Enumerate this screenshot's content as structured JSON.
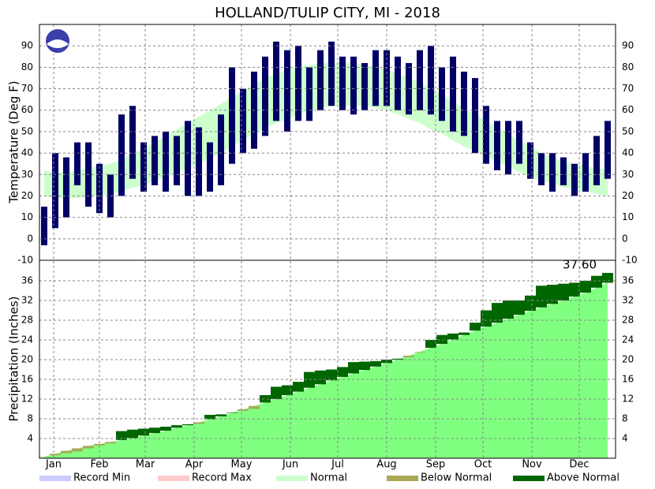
{
  "chart_data": [
    {
      "type": "temperature-range",
      "title": "HOLLAND/TULIP CITY, MI - 2018",
      "y_label": "Temperature (Deg F)",
      "x": [
        4,
        11,
        18,
        25,
        32,
        39,
        46,
        53,
        60,
        67,
        74,
        81,
        88,
        95,
        102,
        109,
        116,
        123,
        130,
        137,
        144,
        151,
        158,
        165,
        172,
        179,
        186,
        193,
        200,
        207,
        214,
        221,
        228,
        235,
        242,
        249,
        256,
        263,
        270,
        277,
        284,
        291,
        298,
        305,
        312,
        319,
        326,
        333,
        340,
        347,
        354,
        361
      ],
      "xlim": [
        1,
        366
      ],
      "ylim": [
        -10,
        100
      ],
      "yticks": [
        -10,
        0,
        10,
        20,
        30,
        40,
        50,
        60,
        70,
        80,
        90
      ],
      "grid": true,
      "observed_color": "#000066",
      "normal_color": "#ccffcc",
      "observed_low": [
        -3,
        5,
        10,
        25,
        15,
        12,
        10,
        20,
        28,
        22,
        25,
        22,
        25,
        20,
        20,
        22,
        25,
        35,
        40,
        42,
        48,
        55,
        50,
        55,
        55,
        60,
        62,
        60,
        58,
        60,
        62,
        62,
        60,
        58,
        60,
        58,
        55,
        50,
        48,
        40,
        35,
        32,
        30,
        35,
        28,
        25,
        22,
        25,
        20,
        22,
        25,
        28
      ],
      "observed_high": [
        15,
        40,
        38,
        45,
        45,
        35,
        30,
        58,
        62,
        45,
        48,
        50,
        48,
        55,
        52,
        45,
        58,
        80,
        70,
        78,
        85,
        92,
        88,
        90,
        80,
        88,
        92,
        85,
        85,
        82,
        88,
        88,
        85,
        82,
        88,
        90,
        80,
        85,
        78,
        75,
        62,
        55,
        55,
        55,
        45,
        40,
        40,
        38,
        35,
        40,
        48,
        55
      ],
      "normal_low": [
        20,
        19,
        19,
        19,
        20,
        20,
        21,
        22,
        24,
        25,
        27,
        29,
        31,
        33,
        35,
        38,
        40,
        43,
        46,
        49,
        52,
        54,
        56,
        58,
        60,
        61,
        62,
        62,
        62,
        62,
        61,
        60,
        58,
        56,
        54,
        51,
        49,
        46,
        43,
        41,
        38,
        36,
        34,
        31,
        29,
        27,
        26,
        24,
        23,
        22,
        21,
        20
      ],
      "normal_high": [
        32,
        31,
        31,
        32,
        33,
        34,
        35,
        37,
        40,
        42,
        45,
        48,
        51,
        54,
        57,
        60,
        63,
        66,
        69,
        72,
        75,
        77,
        79,
        80,
        81,
        82,
        82,
        82,
        82,
        81,
        80,
        79,
        77,
        75,
        73,
        70,
        67,
        64,
        61,
        58,
        55,
        52,
        49,
        46,
        43,
        40,
        38,
        36,
        35,
        34,
        33,
        32
      ]
    },
    {
      "type": "cumulative-precip",
      "y_label": "Precipitation (Inches)",
      "annotation": "37.60",
      "x": [
        4,
        11,
        18,
        25,
        32,
        39,
        46,
        53,
        60,
        67,
        74,
        81,
        88,
        95,
        102,
        109,
        116,
        123,
        130,
        137,
        144,
        151,
        158,
        165,
        172,
        179,
        186,
        193,
        200,
        207,
        214,
        221,
        228,
        235,
        242,
        249,
        256,
        263,
        270,
        277,
        284,
        291,
        298,
        305,
        312,
        319,
        326,
        333,
        340,
        347,
        354,
        361
      ],
      "xlim": [
        1,
        366
      ],
      "xticks": [
        {
          "value": 10,
          "label": "Jan"
        },
        {
          "value": 39,
          "label": "Feb"
        },
        {
          "value": 68,
          "label": "Mar"
        },
        {
          "value": 99,
          "label": "Apr"
        },
        {
          "value": 129,
          "label": "May"
        },
        {
          "value": 160,
          "label": "Jun"
        },
        {
          "value": 190,
          "label": "Jul"
        },
        {
          "value": 221,
          "label": "Aug"
        },
        {
          "value": 252,
          "label": "Sep"
        },
        {
          "value": 282,
          "label": "Oct"
        },
        {
          "value": 313,
          "label": "Nov"
        },
        {
          "value": 343,
          "label": "Dec"
        }
      ],
      "ylim": [
        0,
        40
      ],
      "yticks": [
        4,
        8,
        12,
        16,
        20,
        24,
        28,
        32,
        36
      ],
      "grid": true,
      "normal_color": "#80ff80",
      "above_color": "#006600",
      "below_color": "#aaa855",
      "observed": [
        0.2,
        0.6,
        1.0,
        1.4,
        2.0,
        2.6,
        3.0,
        5.5,
        5.8,
        6.0,
        6.2,
        6.4,
        6.7,
        6.9,
        7.0,
        8.8,
        8.9,
        9.3,
        9.6,
        10.0,
        12.8,
        14.5,
        14.8,
        15.5,
        17.5,
        17.8,
        18.0,
        18.5,
        19.5,
        19.6,
        19.7,
        20.0,
        20.2,
        20.5,
        21.5,
        24.0,
        25.0,
        25.3,
        25.5,
        27.5,
        30.0,
        31.5,
        32.0,
        32.0,
        33.0,
        35.0,
        35.2,
        35.4,
        35.6,
        36.0,
        37.0,
        37.6
      ],
      "normal": [
        0.3,
        0.9,
        1.5,
        2.0,
        2.5,
        2.9,
        3.3,
        3.7,
        4.1,
        4.6,
        5.1,
        5.6,
        6.2,
        6.7,
        7.3,
        7.9,
        8.5,
        9.2,
        9.9,
        10.6,
        11.3,
        12.0,
        12.8,
        13.5,
        14.3,
        15.0,
        15.8,
        16.5,
        17.2,
        17.9,
        18.6,
        19.3,
        20.0,
        20.8,
        21.6,
        22.4,
        23.2,
        24.1,
        25.0,
        25.9,
        26.7,
        27.5,
        28.3,
        29.1,
        29.9,
        30.6,
        31.3,
        32.0,
        32.8,
        33.6,
        34.6,
        35.6
      ]
    }
  ],
  "legend": [
    {
      "name": "Record Min",
      "color": "#ccccff"
    },
    {
      "name": "Record Max",
      "color": "#ffcccc"
    },
    {
      "name": "Normal",
      "color": "#ccffcc"
    },
    {
      "name": "Below Normal",
      "color": "#aaa855"
    },
    {
      "name": "Above Normal",
      "color": "#006600"
    }
  ]
}
